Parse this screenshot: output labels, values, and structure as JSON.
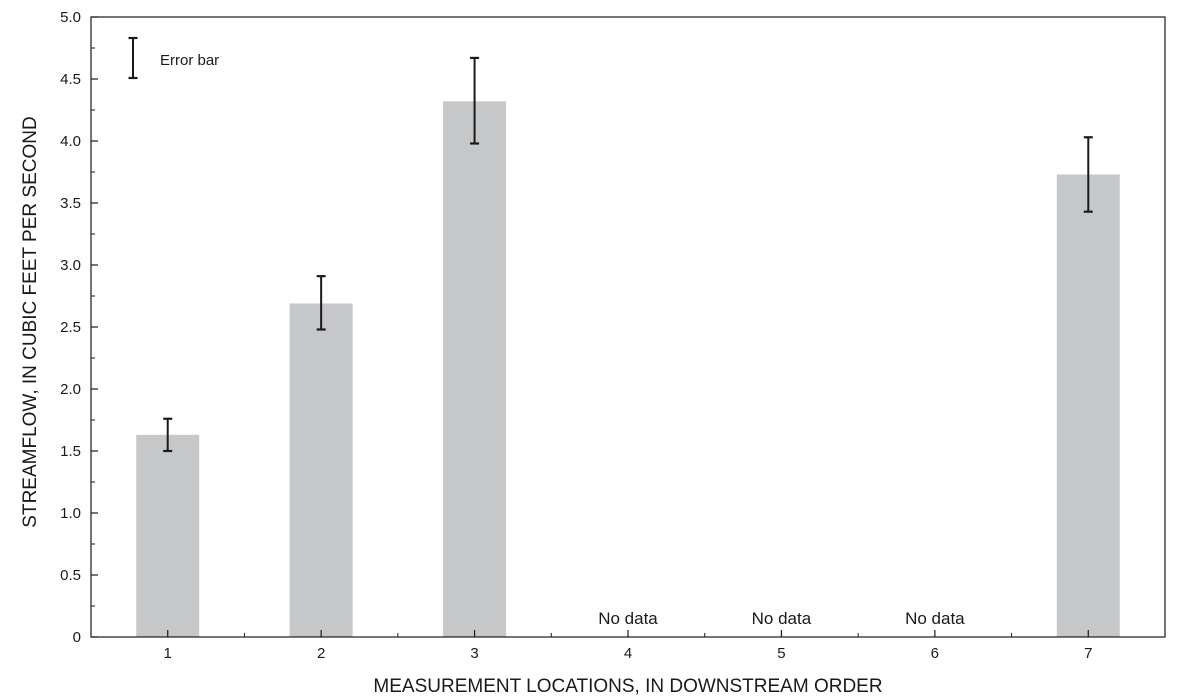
{
  "chart_data": {
    "type": "bar",
    "xlabel": "MEASUREMENT LOCATIONS, IN DOWNSTREAM ORDER",
    "ylabel": "STREAMFLOW, IN CUBIC FEET PER SECOND",
    "categories": [
      "1",
      "2",
      "3",
      "4",
      "5",
      "6",
      "7"
    ],
    "values": [
      1.63,
      2.69,
      4.32,
      null,
      null,
      null,
      3.73
    ],
    "error_bars": [
      {
        "low": 1.5,
        "high": 1.76
      },
      {
        "low": 2.48,
        "high": 2.91
      },
      {
        "low": 3.98,
        "high": 4.67
      },
      null,
      null,
      null,
      {
        "low": 3.43,
        "high": 4.03
      }
    ],
    "missing_label": "No data",
    "ylim": [
      0,
      5.0
    ],
    "y_ticks": [
      "0",
      "0.5",
      "1.0",
      "1.5",
      "2.0",
      "2.5",
      "3.0",
      "3.5",
      "4.0",
      "4.5",
      "5.0"
    ],
    "legend": {
      "label": "Error bar",
      "placement": "top-left"
    },
    "grid": false,
    "colors": {
      "bar": "#c6c7c9",
      "error_bar": "#1a1a1a",
      "axis": "#1a1a1a"
    }
  }
}
